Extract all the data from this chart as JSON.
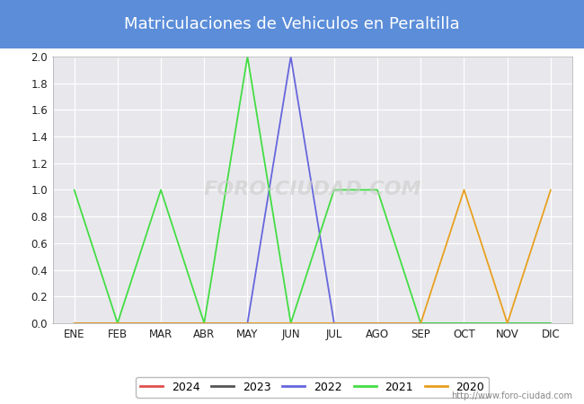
{
  "title": "Matriculaciones de Vehiculos en Peraltilla",
  "title_bg_color": "#5b8dd9",
  "title_text_color": "#ffffff",
  "months": [
    "ENE",
    "FEB",
    "MAR",
    "ABR",
    "MAY",
    "JUN",
    "JUL",
    "AGO",
    "SEP",
    "OCT",
    "NOV",
    "DIC"
  ],
  "ylim": [
    0.0,
    2.0
  ],
  "yticks": [
    0.0,
    0.2,
    0.4,
    0.6,
    0.8,
    1.0,
    1.2,
    1.4,
    1.6,
    1.8,
    2.0
  ],
  "series": {
    "2024": {
      "color": "#e05050",
      "data": [
        null,
        null,
        null,
        null,
        null,
        null,
        null,
        null,
        null,
        null,
        null,
        null
      ]
    },
    "2023": {
      "color": "#555555",
      "data": [
        null,
        null,
        null,
        null,
        null,
        null,
        null,
        null,
        null,
        null,
        null,
        null
      ]
    },
    "2022": {
      "color": "#6666dd",
      "data": [
        null,
        null,
        null,
        null,
        null,
        2.0,
        null,
        null,
        null,
        null,
        null,
        null
      ]
    },
    "2021": {
      "color": "#44dd44",
      "data": [
        1.0,
        null,
        1.0,
        null,
        2.0,
        null,
        1.0,
        1.0,
        null,
        null,
        null,
        null
      ]
    },
    "2020": {
      "color": "#e8a020",
      "data": [
        null,
        null,
        null,
        null,
        null,
        null,
        null,
        null,
        null,
        1.0,
        null,
        1.0
      ]
    }
  },
  "legend_order": [
    "2024",
    "2023",
    "2022",
    "2021",
    "2020"
  ],
  "watermark": "http://www.foro-ciudad.com",
  "plot_bg_color": "#e8e8ec",
  "plot_border_color": "#000000",
  "grid_color": "#ffffff",
  "fig_bg_color": "#ffffff"
}
